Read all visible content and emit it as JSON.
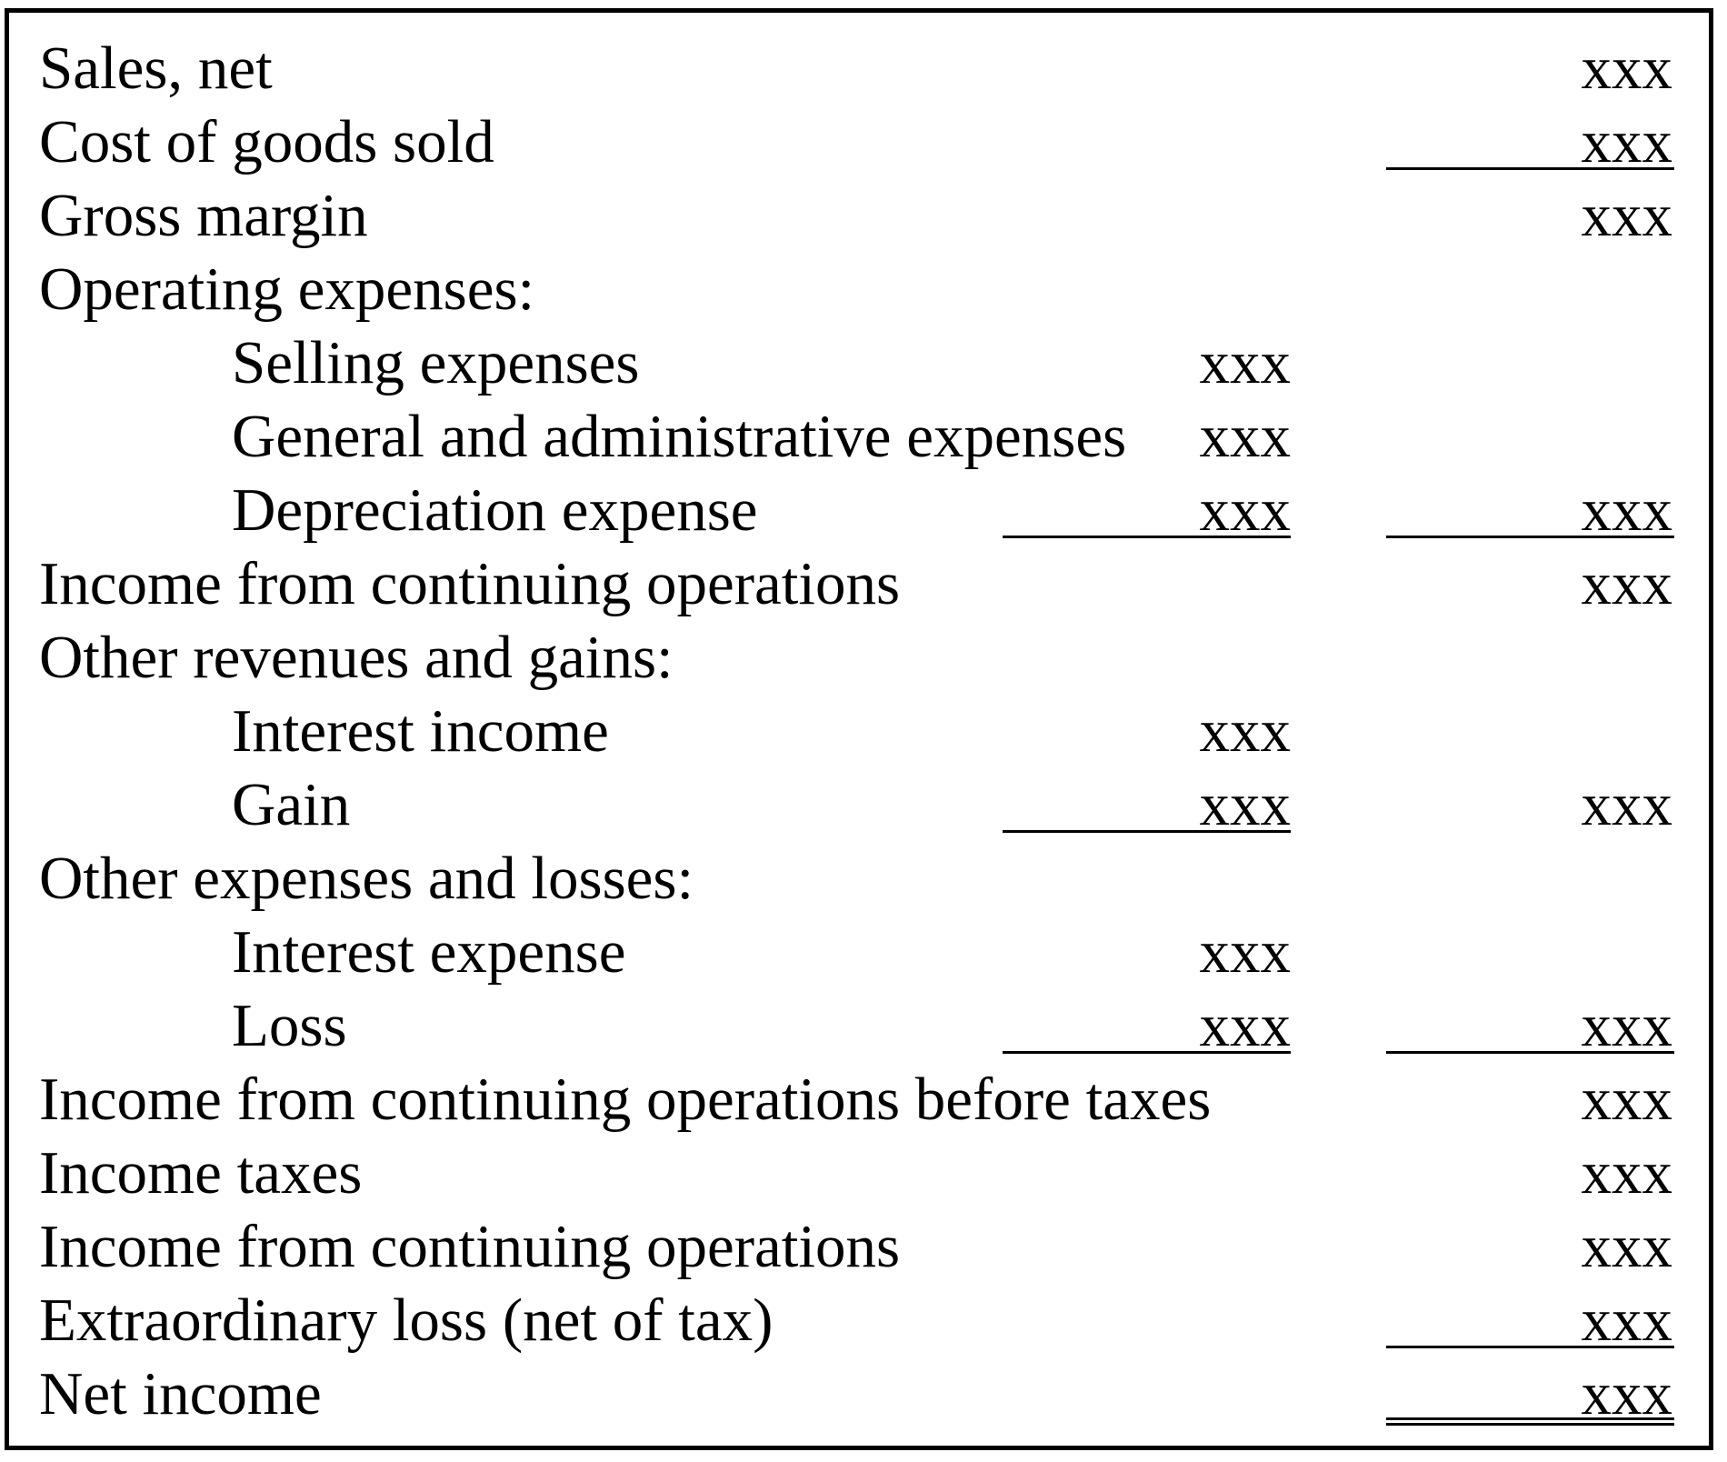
{
  "statement": {
    "sales_net": {
      "label": "Sales, net",
      "col2": "xxx"
    },
    "cogs": {
      "label": "Cost of goods sold",
      "col2": "xxx"
    },
    "gross_margin": {
      "label": "Gross margin",
      "col2": "xxx"
    },
    "opex_header": {
      "label": "Operating expenses:"
    },
    "selling": {
      "label": "Selling expenses",
      "col1": "xxx"
    },
    "gna": {
      "label": "General and administrative expenses",
      "col1": "xxx"
    },
    "depreciation": {
      "label": "Depreciation expense",
      "col1": "xxx",
      "col2": "xxx"
    },
    "income_cont_ops_1": {
      "label": "Income from continuing operations",
      "col2": "xxx"
    },
    "other_rev_header": {
      "label": "Other revenues and gains:"
    },
    "interest_income": {
      "label": "Interest income",
      "col1": "xxx"
    },
    "gain": {
      "label": "Gain",
      "col1": "xxx",
      "col2": "xxx"
    },
    "other_exp_header": {
      "label": "Other expenses and losses:"
    },
    "interest_expense": {
      "label": "Interest expense",
      "col1": "xxx"
    },
    "loss": {
      "label": "Loss",
      "col1": "xxx",
      "col2": "xxx"
    },
    "income_before_taxes": {
      "label": "Income from continuing operations before taxes",
      "col2": "xxx"
    },
    "income_taxes": {
      "label": "Income taxes",
      "col2": "xxx"
    },
    "income_cont_ops_2": {
      "label": "Income from continuing operations",
      "col2": "xxx"
    },
    "extraordinary_loss": {
      "label": "Extraordinary loss (net of tax)",
      "col2": "xxx"
    },
    "net_income": {
      "label": "Net income",
      "col2": "xxx"
    }
  }
}
